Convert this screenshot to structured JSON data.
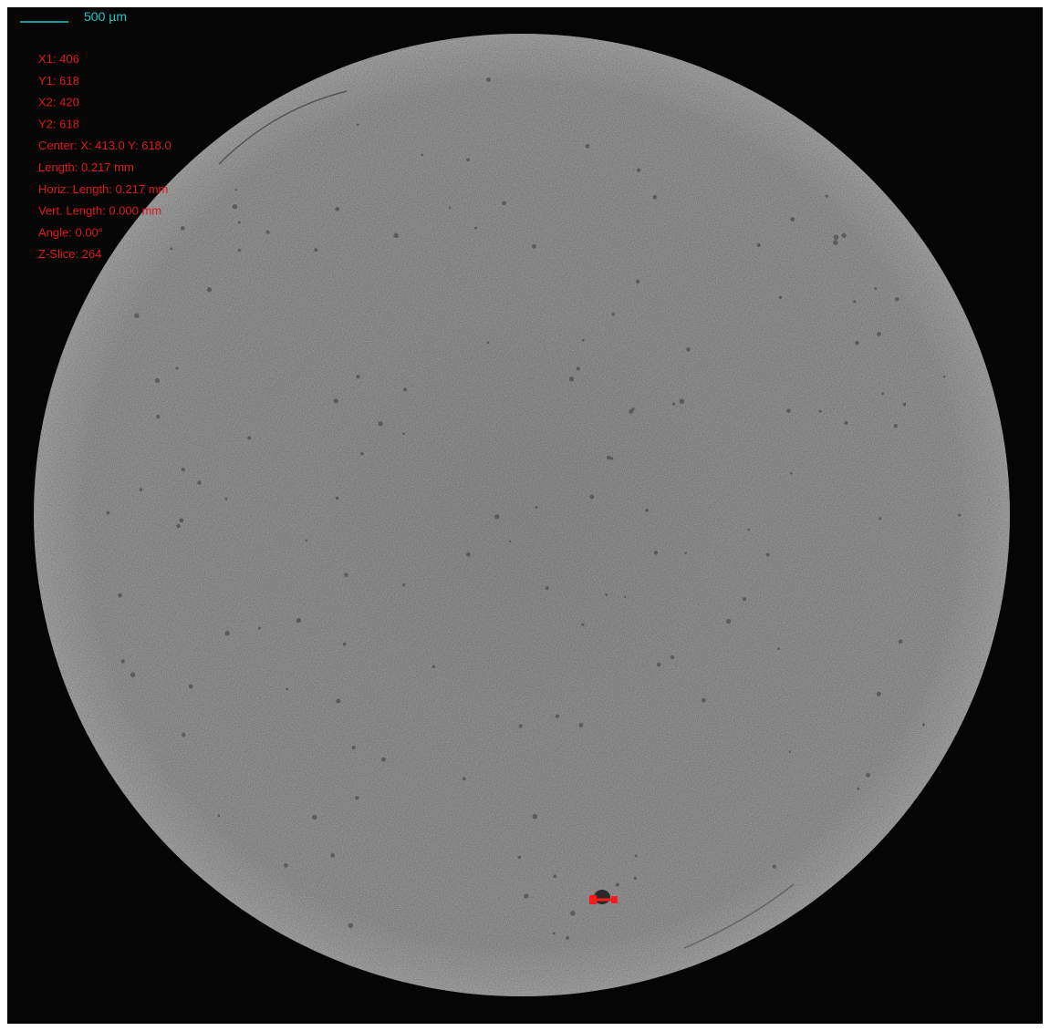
{
  "scale_bar": {
    "label": "500 µm"
  },
  "measurement": {
    "lines": [
      "X1: 406",
      "Y1: 618",
      "X2: 420",
      "Y2: 618",
      "Center: X: 413.0 Y: 618.0",
      "Length: 0.217 mm",
      "Horiz. Length: 0.217 mm",
      "Vert. Length: 0.000 mm",
      "Angle: 0.00°",
      "Z-Slice: 264"
    ]
  }
}
